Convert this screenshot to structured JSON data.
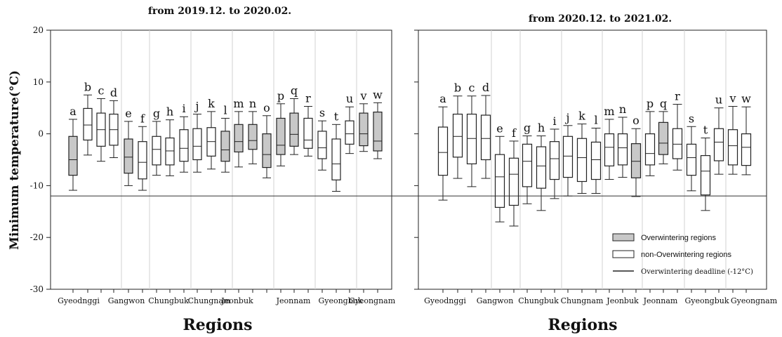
{
  "chart_data": {
    "type": "boxplot",
    "ylabel": "Minimum temperature(°C)",
    "xlabel": "Regions",
    "ylim": [
      -30,
      20
    ],
    "y_ticks": [
      20,
      10,
      0,
      -10,
      -20,
      -30
    ],
    "threshold": -12,
    "colors": {
      "overwintering": "#c8c8c8",
      "non_overwintering": "#ffffff",
      "stroke": "#222222",
      "region_divider": "#d2d2d2"
    },
    "regions": [
      "Gyeodnggi",
      "Gangwon",
      "Chungbuk",
      "Chungnam",
      "Jeonbuk",
      "Jeonnam",
      "Gyeongbuk",
      "Gyeongnam"
    ],
    "legend": {
      "overwintering": "Overwintering regions",
      "non_overwintering": "non-Overwintering regions",
      "deadline": "Overwintering deadline (-12°C)"
    },
    "panels": [
      {
        "title": "from 2019.12. to 2020.02.",
        "boxes": [
          {
            "label": "a",
            "region": "Gyeodnggi",
            "min": -10.9,
            "q1": -8.0,
            "median": -5.0,
            "q3": -0.5,
            "max": 2.8,
            "overwintering": true
          },
          {
            "label": "b",
            "region": "Gyeodnggi",
            "min": -4.1,
            "q1": -1.2,
            "median": 1.7,
            "q3": 4.9,
            "max": 7.5,
            "overwintering": false
          },
          {
            "label": "c",
            "region": "Gyeodnggi",
            "min": -5.3,
            "q1": -2.4,
            "median": 0.8,
            "q3": 4.0,
            "max": 6.8,
            "overwintering": false
          },
          {
            "label": "d",
            "region": "Gyeodnggi",
            "min": -4.6,
            "q1": -2.2,
            "median": 0.8,
            "q3": 3.8,
            "max": 6.4,
            "overwintering": false
          },
          {
            "label": "e",
            "region": "Gangwon",
            "min": -10.0,
            "q1": -7.6,
            "median": -4.5,
            "q3": -1.0,
            "max": 2.4,
            "overwintering": true
          },
          {
            "label": "f",
            "region": "Gangwon",
            "min": -10.9,
            "q1": -8.7,
            "median": -5.5,
            "q3": -1.5,
            "max": 1.4,
            "overwintering": false
          },
          {
            "label": "g",
            "region": "Chungbuk",
            "min": -8.0,
            "q1": -6.0,
            "median": -3.0,
            "q3": -0.5,
            "max": 2.4,
            "overwintering": false
          },
          {
            "label": "h",
            "region": "Chungbuk",
            "min": -8.1,
            "q1": -6.0,
            "median": -3.3,
            "q3": -0.8,
            "max": 2.7,
            "overwintering": false
          },
          {
            "label": "i",
            "region": "Chungbuk",
            "min": -7.4,
            "q1": -5.3,
            "median": -2.8,
            "q3": 0.8,
            "max": 3.3,
            "overwintering": false
          },
          {
            "label": "j",
            "region": "Chungnam",
            "min": -7.4,
            "q1": -5.0,
            "median": -2.4,
            "q3": 1.0,
            "max": 3.8,
            "overwintering": false
          },
          {
            "label": "k",
            "region": "Chungnam",
            "min": -6.8,
            "q1": -4.3,
            "median": -1.5,
            "q3": 1.2,
            "max": 4.3,
            "overwintering": false
          },
          {
            "label": "l",
            "region": "Chungnam",
            "min": -7.4,
            "q1": -5.3,
            "median": -3.1,
            "q3": 0.5,
            "max": 3.0,
            "overwintering": true
          },
          {
            "label": "m",
            "region": "Jeonbuk",
            "min": -6.4,
            "q1": -3.5,
            "median": -1.5,
            "q3": 1.8,
            "max": 4.3,
            "overwintering": true
          },
          {
            "label": "n",
            "region": "Jeonbuk",
            "min": -5.8,
            "q1": -3.0,
            "median": -1.3,
            "q3": 1.8,
            "max": 4.3,
            "overwintering": true
          },
          {
            "label": "o",
            "region": "Jeonbuk",
            "min": -8.5,
            "q1": -6.5,
            "median": -4.0,
            "q3": 0.0,
            "max": 3.5,
            "overwintering": true
          },
          {
            "label": "p",
            "region": "Jeonnam",
            "min": -6.2,
            "q1": -4.0,
            "median": -2.2,
            "q3": 3.0,
            "max": 5.8,
            "overwintering": true
          },
          {
            "label": "q",
            "region": "Jeonnam",
            "min": -4.0,
            "q1": -2.4,
            "median": -0.1,
            "q3": 4.0,
            "max": 6.8,
            "overwintering": true
          },
          {
            "label": "r",
            "region": "Jeonnam",
            "min": -4.3,
            "q1": -2.8,
            "median": -1.2,
            "q3": 3.0,
            "max": 5.3,
            "overwintering": false
          },
          {
            "label": "s",
            "region": "Gyeongbuk",
            "min": -7.0,
            "q1": -4.8,
            "median": -2.7,
            "q3": 0.5,
            "max": 2.5,
            "overwintering": false
          },
          {
            "label": "t",
            "region": "Gyeongbuk",
            "min": -11.1,
            "q1": -8.9,
            "median": -5.8,
            "q3": -1.0,
            "max": 1.8,
            "overwintering": false
          },
          {
            "label": "u",
            "region": "Gyeongnam",
            "min": -3.8,
            "q1": -2.0,
            "median": 0.0,
            "q3": 2.5,
            "max": 5.2,
            "overwintering": false
          },
          {
            "label": "v",
            "region": "Gyeongnam",
            "min": -3.4,
            "q1": -2.3,
            "median": 0.0,
            "q3": 4.0,
            "max": 5.8,
            "overwintering": true
          },
          {
            "label": "w",
            "region": "Gyeongnam",
            "min": -4.8,
            "q1": -3.3,
            "median": -1.4,
            "q3": 4.2,
            "max": 6.0,
            "overwintering": true
          }
        ]
      },
      {
        "title": "from 2020.12. to 2021.02.",
        "boxes": [
          {
            "label": "a",
            "region": "Gyeodnggi",
            "min": -12.8,
            "q1": -8.0,
            "median": -3.6,
            "q3": 1.3,
            "max": 5.2,
            "overwintering": false
          },
          {
            "label": "b",
            "region": "Gyeodnggi",
            "min": -8.6,
            "q1": -4.5,
            "median": -0.5,
            "q3": 3.8,
            "max": 7.3,
            "overwintering": false
          },
          {
            "label": "c",
            "region": "Gyeodnggi",
            "min": -10.2,
            "q1": -5.8,
            "median": -0.9,
            "q3": 3.8,
            "max": 7.3,
            "overwintering": false
          },
          {
            "label": "d",
            "region": "Gyeodnggi",
            "min": -8.6,
            "q1": -5.0,
            "median": -0.9,
            "q3": 3.6,
            "max": 7.4,
            "overwintering": false
          },
          {
            "label": "e",
            "region": "Gangwon",
            "min": -17.0,
            "q1": -14.2,
            "median": -8.3,
            "q3": -4.0,
            "max": -0.5,
            "overwintering": false
          },
          {
            "label": "f",
            "region": "Gangwon",
            "min": -17.8,
            "q1": -13.8,
            "median": -7.8,
            "q3": -4.7,
            "max": -1.4,
            "overwintering": false
          },
          {
            "label": "g",
            "region": "Chungbuk",
            "min": -13.5,
            "q1": -10.2,
            "median": -5.3,
            "q3": -2.0,
            "max": -0.4,
            "overwintering": false
          },
          {
            "label": "h",
            "region": "Chungbuk",
            "min": -14.8,
            "q1": -10.5,
            "median": -6.2,
            "q3": -2.5,
            "max": -0.4,
            "overwintering": false
          },
          {
            "label": "i",
            "region": "Chungbuk",
            "min": -12.5,
            "q1": -8.8,
            "median": -4.8,
            "q3": -1.5,
            "max": 0.9,
            "overwintering": false
          },
          {
            "label": "j",
            "region": "Chungnam",
            "min": -12.0,
            "q1": -8.4,
            "median": -4.3,
            "q3": -0.5,
            "max": 1.6,
            "overwintering": false
          },
          {
            "label": "k",
            "region": "Chungnam",
            "min": -11.5,
            "q1": -9.2,
            "median": -4.6,
            "q3": -0.9,
            "max": 1.9,
            "overwintering": false
          },
          {
            "label": "l",
            "region": "Chungnam",
            "min": -11.5,
            "q1": -8.8,
            "median": -5.0,
            "q3": -1.6,
            "max": 1.1,
            "overwintering": false
          },
          {
            "label": "m",
            "region": "Jeonbuk",
            "min": -8.8,
            "q1": -6.2,
            "median": -2.6,
            "q3": 0.0,
            "max": 2.8,
            "overwintering": false
          },
          {
            "label": "n",
            "region": "Jeonbuk",
            "min": -8.4,
            "q1": -6.0,
            "median": -2.7,
            "q3": 0.0,
            "max": 3.2,
            "overwintering": false
          },
          {
            "label": "o",
            "region": "Jeonbuk",
            "min": -12.1,
            "q1": -8.5,
            "median": -5.3,
            "q3": -1.9,
            "max": 1.0,
            "overwintering": true
          },
          {
            "label": "p",
            "region": "Jeonnam",
            "min": -8.1,
            "q1": -6.0,
            "median": -3.8,
            "q3": 0.0,
            "max": 4.3,
            "overwintering": false
          },
          {
            "label": "q",
            "region": "Jeonnam",
            "min": -5.8,
            "q1": -4.0,
            "median": -1.8,
            "q3": 2.2,
            "max": 4.3,
            "overwintering": true
          },
          {
            "label": "r",
            "region": "Jeonnam",
            "min": -7.0,
            "q1": -4.8,
            "median": -2.0,
            "q3": 1.0,
            "max": 5.7,
            "overwintering": false
          },
          {
            "label": "s",
            "region": "Gyeongbuk",
            "min": -11.0,
            "q1": -8.0,
            "median": -4.6,
            "q3": -2.0,
            "max": 1.4,
            "overwintering": false
          },
          {
            "label": "t",
            "region": "Gyeongbuk",
            "min": -14.8,
            "q1": -11.8,
            "median": -7.2,
            "q3": -4.2,
            "max": -0.8,
            "overwintering": false
          },
          {
            "label": "u",
            "region": "Gyeongnam",
            "min": -7.8,
            "q1": -5.2,
            "median": -1.6,
            "q3": 1.0,
            "max": 5.0,
            "overwintering": false
          },
          {
            "label": "v",
            "region": "Gyeongnam",
            "min": -7.8,
            "q1": -6.0,
            "median": -2.3,
            "q3": 0.8,
            "max": 5.3,
            "overwintering": false
          },
          {
            "label": "w",
            "region": "Gyeongnam",
            "min": -7.9,
            "q1": -6.1,
            "median": -2.6,
            "q3": 0.0,
            "max": 5.2,
            "overwintering": false
          }
        ]
      }
    ]
  }
}
